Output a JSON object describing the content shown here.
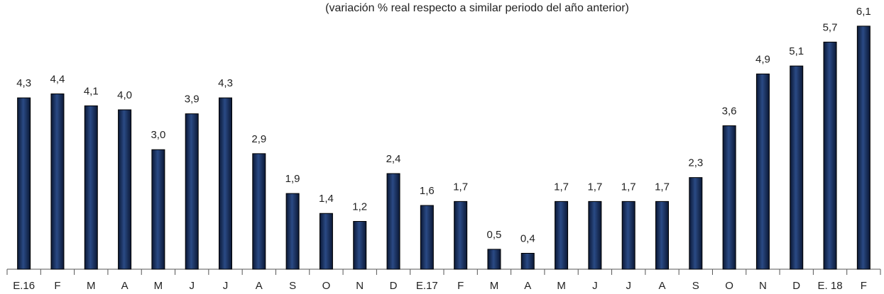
{
  "chart_data": {
    "type": "bar",
    "subtitle": "(variación % real respecto a similar periodo del año anterior)",
    "categories": [
      "E.16",
      "F",
      "M",
      "A",
      "M",
      "J",
      "J",
      "A",
      "S",
      "O",
      "N",
      "D",
      "E.17",
      "F",
      "M",
      "A",
      "M",
      "J",
      "J",
      "A",
      "S",
      "O",
      "N",
      "D",
      "E. 18",
      "F"
    ],
    "values": [
      4.3,
      4.4,
      4.1,
      4.0,
      3.0,
      3.9,
      4.3,
      2.9,
      1.9,
      1.4,
      1.2,
      2.4,
      1.6,
      1.7,
      0.5,
      0.4,
      1.7,
      1.7,
      1.7,
      1.7,
      2.3,
      3.6,
      4.9,
      5.1,
      5.7,
      6.1
    ],
    "value_labels": [
      "4,3",
      "4,4",
      "4,1",
      "4,0",
      "3,0",
      "3,9",
      "4,3",
      "2,9",
      "1,9",
      "1,4",
      "1,2",
      "2,4",
      "1,6",
      "1,7",
      "0,5",
      "0,4",
      "1,7",
      "1,7",
      "1,7",
      "1,7",
      "2,3",
      "3,6",
      "4,9",
      "5,1",
      "5,7",
      "6,1"
    ],
    "color": "#1b3260",
    "ylim": [
      0,
      6.4
    ]
  }
}
